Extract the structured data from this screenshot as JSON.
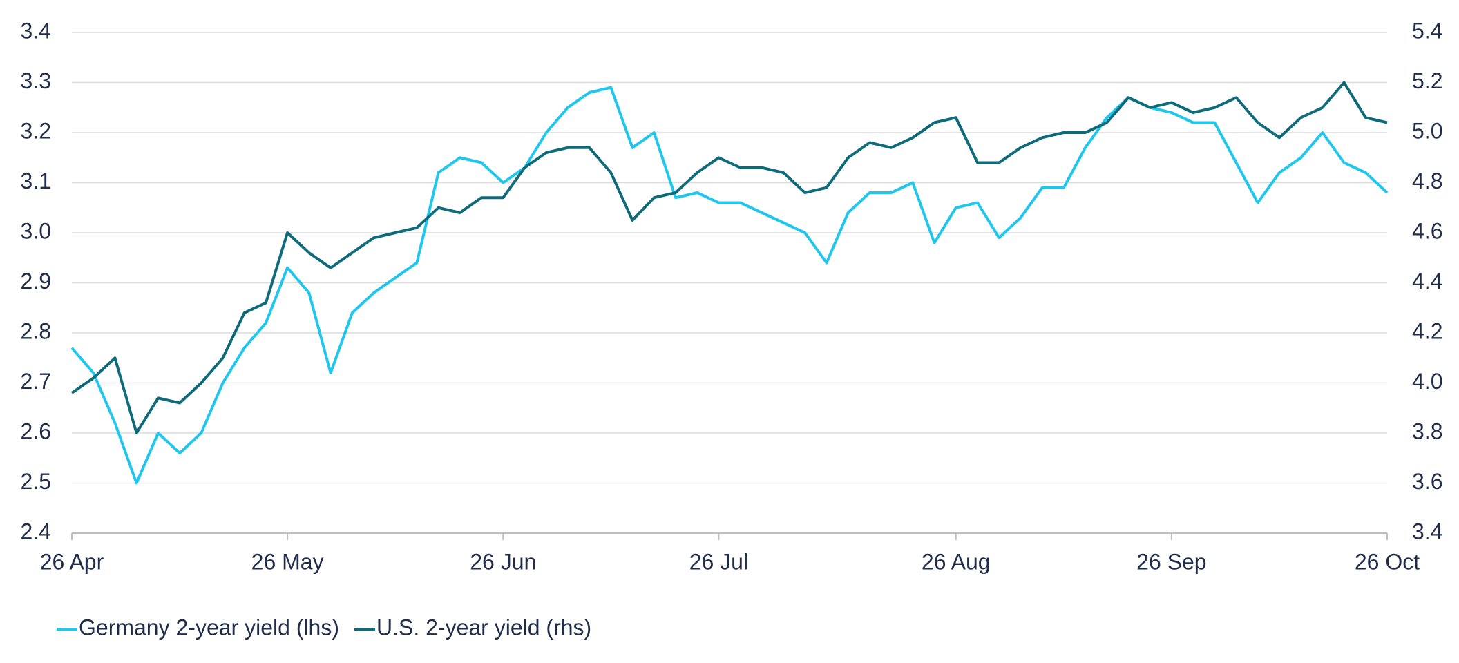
{
  "chart_data": {
    "type": "line",
    "categories": [
      "26 Apr",
      null,
      null,
      null,
      null,
      null,
      null,
      null,
      null,
      null,
      "26 May",
      null,
      null,
      null,
      null,
      null,
      null,
      null,
      null,
      null,
      "26 Jun",
      null,
      null,
      null,
      null,
      null,
      null,
      null,
      null,
      null,
      "26 Jul",
      null,
      null,
      null,
      null,
      null,
      null,
      null,
      null,
      null,
      null,
      "26 Aug",
      null,
      null,
      null,
      null,
      null,
      null,
      null,
      null,
      null,
      "26 Sep",
      null,
      null,
      null,
      null,
      null,
      null,
      null,
      null,
      null,
      "26 Oct"
    ],
    "series": [
      {
        "name": "Germany 2-year yield (lhs)",
        "color": "#1fc7ef",
        "axis": "y",
        "values": [
          2.77,
          2.72,
          2.62,
          2.5,
          2.6,
          2.56,
          2.6,
          2.7,
          2.77,
          2.82,
          2.93,
          2.88,
          2.72,
          2.84,
          2.88,
          2.91,
          2.94,
          3.12,
          3.15,
          3.14,
          3.1,
          3.13,
          3.2,
          3.25,
          3.28,
          3.29,
          3.17,
          3.2,
          3.07,
          3.08,
          3.06,
          3.06,
          3.04,
          3.02,
          3.0,
          2.94,
          3.04,
          3.08,
          3.08,
          3.1,
          2.98,
          3.05,
          3.06,
          2.99,
          3.03,
          3.09,
          3.09,
          3.17,
          3.23,
          3.27,
          3.25,
          3.24,
          3.22,
          3.22,
          3.14,
          3.06,
          3.12,
          3.15,
          3.2,
          3.14,
          3.12,
          3.08
        ]
      },
      {
        "name": "U.S. 2-year yield (rhs)",
        "color": "#0e6b7a",
        "axis": "y2",
        "values": [
          3.96,
          4.02,
          4.1,
          3.8,
          3.94,
          3.92,
          4.0,
          4.1,
          4.28,
          4.32,
          4.6,
          4.52,
          4.46,
          4.52,
          4.58,
          4.6,
          4.62,
          4.7,
          4.68,
          4.74,
          4.74,
          4.86,
          4.92,
          4.94,
          4.94,
          4.84,
          4.65,
          4.74,
          4.76,
          4.84,
          4.9,
          4.86,
          4.86,
          4.84,
          4.76,
          4.78,
          4.9,
          4.96,
          4.94,
          4.98,
          5.04,
          5.06,
          4.88,
          4.88,
          4.94,
          4.98,
          5.0,
          5.0,
          5.04,
          5.14,
          5.1,
          5.12,
          5.08,
          5.1,
          5.14,
          5.04,
          4.98,
          5.06,
          5.1,
          5.2,
          5.06,
          5.04
        ]
      }
    ],
    "ylim": [
      2.4,
      3.4
    ],
    "yticks": [
      {
        "value": 2.4,
        "label": "2.4"
      },
      {
        "value": 2.5,
        "label": "2.5"
      },
      {
        "value": 2.6,
        "label": "2.6"
      },
      {
        "value": 2.7,
        "label": "2.7"
      },
      {
        "value": 2.8,
        "label": "2.8"
      },
      {
        "value": 2.9,
        "label": "2.9"
      },
      {
        "value": 3.0,
        "label": "3.0"
      },
      {
        "value": 3.1,
        "label": "3.1"
      },
      {
        "value": 3.2,
        "label": "3.2"
      },
      {
        "value": 3.3,
        "label": "3.3"
      },
      {
        "value": 3.4,
        "label": "3.4"
      }
    ],
    "y2lim": [
      3.4,
      5.4
    ],
    "y2ticks": [
      {
        "value": 3.4,
        "label": "3.4"
      },
      {
        "value": 3.6,
        "label": "3.6"
      },
      {
        "value": 3.8,
        "label": "3.8"
      },
      {
        "value": 4.0,
        "label": "4.0"
      },
      {
        "value": 4.2,
        "label": "4.2"
      },
      {
        "value": 4.4,
        "label": "4.4"
      },
      {
        "value": 4.6,
        "label": "4.6"
      },
      {
        "value": 4.8,
        "label": "4.8"
      },
      {
        "value": 5.0,
        "label": "5.0"
      },
      {
        "value": 5.2,
        "label": "5.2"
      },
      {
        "value": 5.4,
        "label": "5.4"
      }
    ],
    "grid": true,
    "legend": "bottom-left"
  }
}
